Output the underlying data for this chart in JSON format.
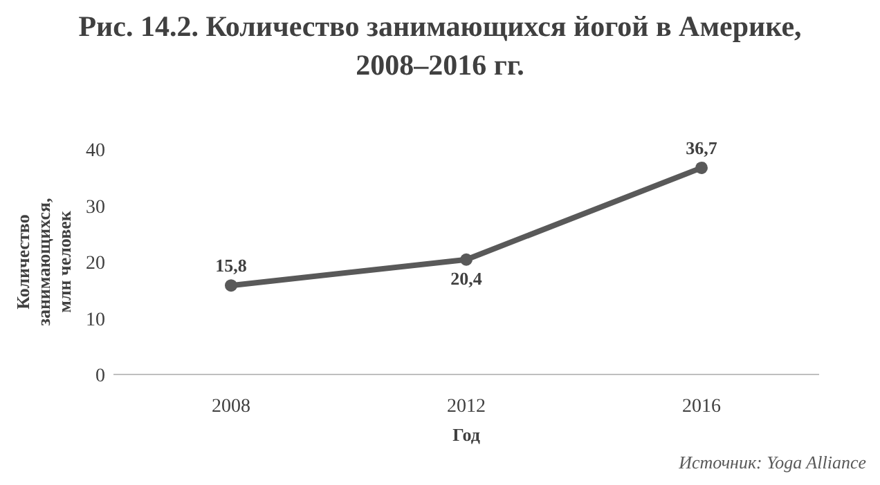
{
  "chart_data": {
    "type": "line",
    "title": "Рис. 14.2. Количество занимающихся йогой в Америке, 2008–2016 гг.",
    "xlabel": "Год",
    "ylabel": "Количество занимающихся, млн человек",
    "categories": [
      "2008",
      "2012",
      "2016"
    ],
    "series": [
      {
        "color": "#595959",
        "values": [
          15.8,
          20.4,
          36.7
        ],
        "value_labels": [
          "15,8",
          "20,4",
          "36,7"
        ]
      }
    ],
    "ylim": [
      0,
      40
    ],
    "yticks": [
      0,
      10,
      20,
      30,
      40
    ],
    "grid": false,
    "marker": "circle",
    "line_style": "solid",
    "annotations": [
      "Источник: Yoga Alliance"
    ]
  }
}
